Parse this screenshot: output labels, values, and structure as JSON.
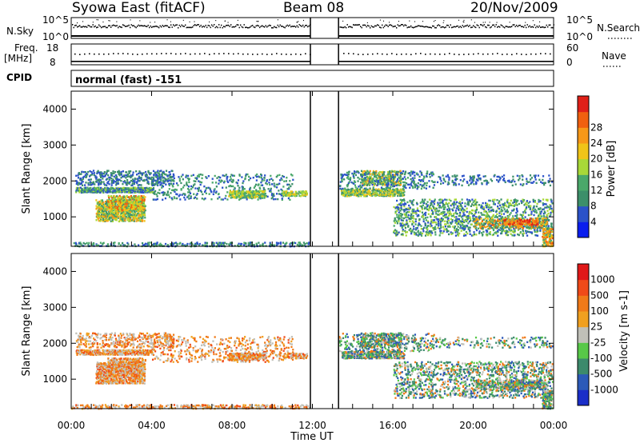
{
  "header": {
    "station": "Syowa East (fitACF)",
    "beam": "Beam 08",
    "date": "20/Nov/2009"
  },
  "top_panels": {
    "nsky_label": "N.Sky",
    "nsky_ticks": [
      "10^5",
      "10^0"
    ],
    "nsearch_ticks": [
      "10^5",
      "10^0"
    ],
    "nsearch_label": "N.Search",
    "freq_label_1": "Freq.",
    "freq_label_2": "[MHz]",
    "freq_ticks": [
      "18",
      "8"
    ],
    "nave_ticks": [
      "60",
      "0"
    ],
    "nave_label": "Nave",
    "cpid_label": "CPID",
    "cpid_text": "normal (fast) -151"
  },
  "chart_data": [
    {
      "type": "heatmap",
      "title": "Power",
      "ylabel": "Slant Range [km]",
      "xlabel": "Time UT",
      "xlim": [
        "00:00",
        "24:00"
      ],
      "ylim": [
        180,
        4500
      ],
      "x_ticks": [
        "00:00",
        "04:00",
        "08:00",
        "12:00",
        "16:00",
        "20:00",
        "00:00"
      ],
      "y_ticks": [
        1000,
        2000,
        3000,
        4000
      ],
      "data_gap_hours": [
        11.9,
        13.3
      ],
      "colorbar": {
        "label": "Power [dB]",
        "ticks": [
          4,
          8,
          12,
          16,
          20,
          24,
          28
        ],
        "colors": [
          "#0a1eee",
          "#2b52c9",
          "#3c8f6a",
          "#4aa86a",
          "#a8d838",
          "#f0c418",
          "#f79818",
          "#f06010",
          "#e02018"
        ]
      }
    },
    {
      "type": "heatmap",
      "title": "Velocity",
      "ylabel": "Slant Range [km]",
      "xlabel": "Time UT",
      "xlim": [
        "00:00",
        "24:00"
      ],
      "ylim": [
        180,
        4500
      ],
      "x_ticks": [
        "00:00",
        "04:00",
        "08:00",
        "12:00",
        "16:00",
        "20:00",
        "00:00"
      ],
      "y_ticks": [
        1000,
        2000,
        3000,
        4000
      ],
      "data_gap_hours": [
        11.9,
        13.3
      ],
      "colorbar": {
        "label": "Velocity [m s-1]",
        "ticks": [
          "1000",
          "500",
          "100",
          "25",
          "-25",
          "-100",
          "-500",
          "-1000"
        ],
        "colors": [
          "#1a2ec8",
          "#2c5ab8",
          "#3c8a6c",
          "#58c848",
          "#c0c0b8",
          "#f0a020",
          "#f07a18",
          "#f04a18",
          "#e01818"
        ]
      }
    }
  ]
}
